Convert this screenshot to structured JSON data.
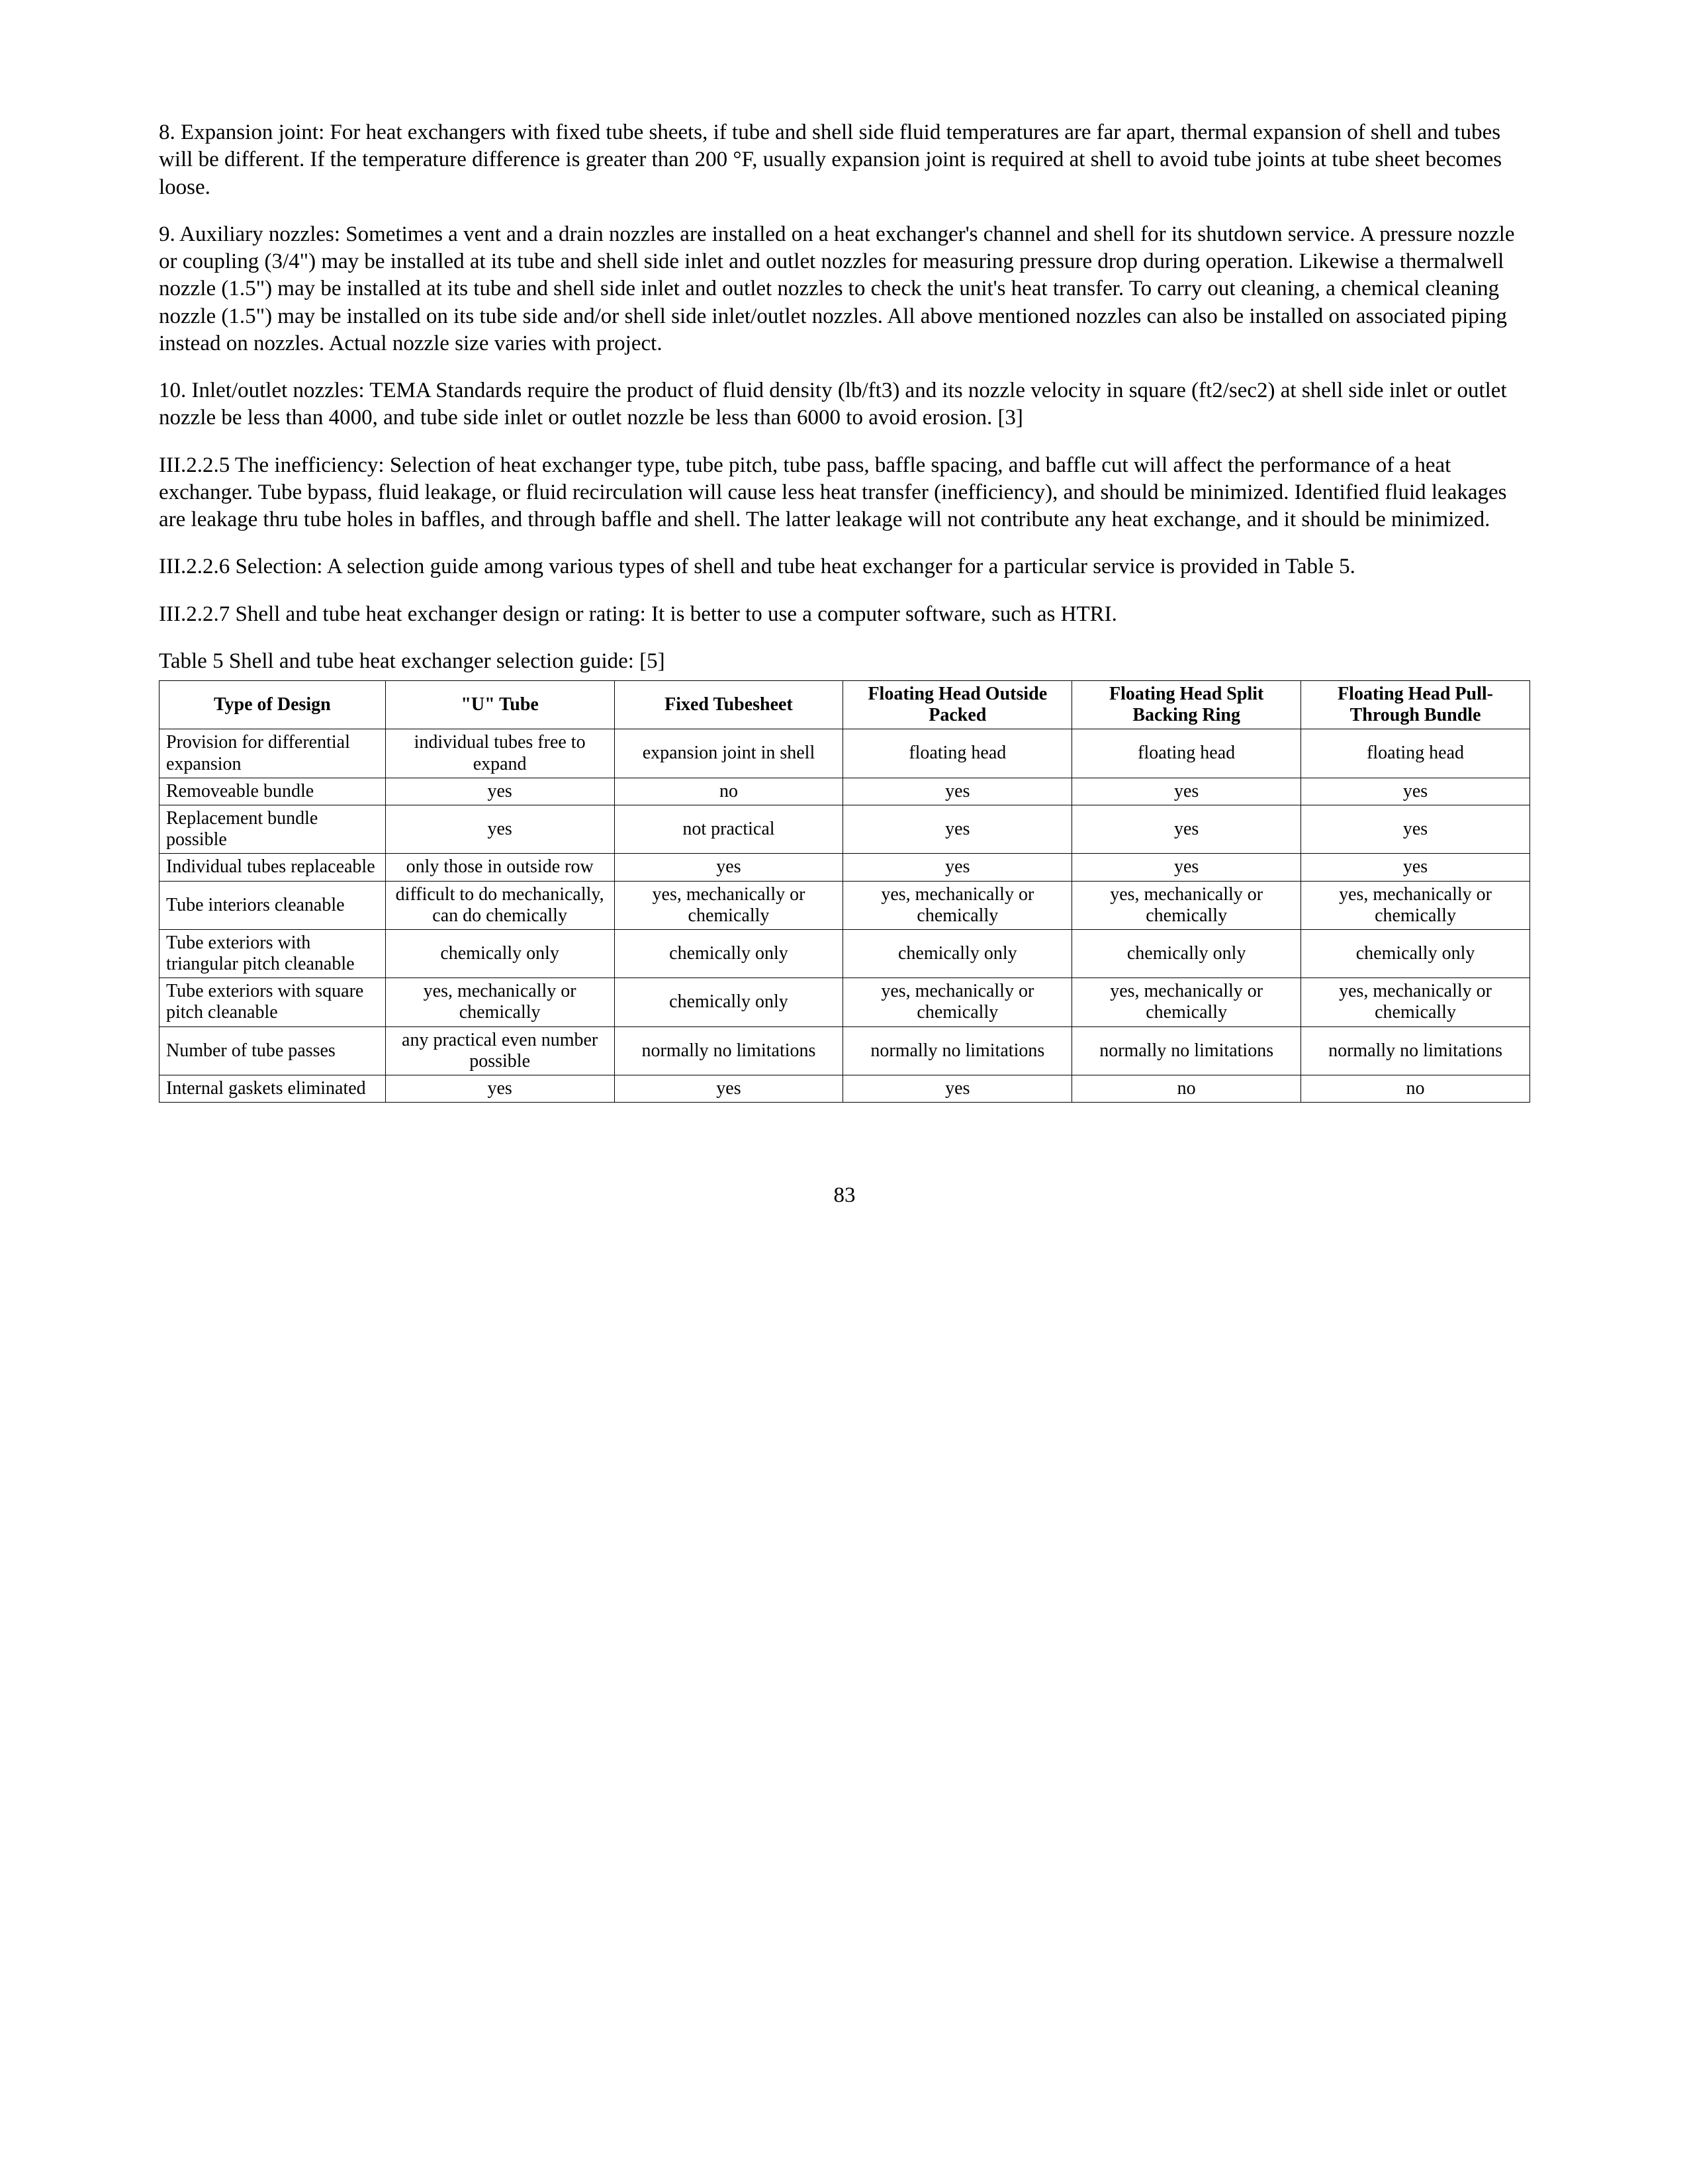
{
  "paragraphs": {
    "p8": "8. Expansion joint: For heat exchangers with fixed tube sheets, if tube and shell side fluid temperatures are far apart, thermal expansion of shell and tubes will be different. If the temperature difference is greater than 200 °F, usually expansion joint is required at shell to avoid tube joints at tube sheet becomes loose.",
    "p9": "9. Auxiliary nozzles: Sometimes a vent and a drain nozzles are installed on a heat exchanger's channel and shell for its shutdown service. A pressure nozzle or coupling (3/4\") may be installed at its tube and shell side inlet and outlet nozzles for measuring pressure drop during operation. Likewise a thermalwell nozzle (1.5\") may be installed at its tube and shell side inlet and outlet nozzles to check the unit's heat transfer. To carry out cleaning, a chemical cleaning nozzle (1.5\") may be installed on its tube side and/or shell side inlet/outlet nozzles. All above mentioned nozzles can also be installed on associated piping instead on nozzles. Actual nozzle size varies with project.",
    "p10": "10. Inlet/outlet nozzles: TEMA Standards require the product of fluid density (lb/ft3) and its nozzle velocity in square (ft2/sec2) at shell side inlet or outlet nozzle be less than 4000, and tube side inlet or outlet nozzle be less than 6000 to avoid erosion. [3]",
    "p_iii225": "III.2.2.5 The inefficiency: Selection of heat exchanger type, tube pitch, tube pass, baffle spacing, and baffle cut will affect the performance of a heat exchanger. Tube bypass, fluid leakage, or fluid recirculation will cause less heat transfer (inefficiency), and should be minimized. Identified fluid leakages are leakage thru tube holes in baffles, and through baffle and shell. The latter leakage will not contribute any heat exchange, and it should be minimized.",
    "p_iii226": "III.2.2.6 Selection: A selection guide among various types of shell and tube heat exchanger for a particular service is provided in Table 5.",
    "p_iii227": "III.2.2.7 Shell and tube heat exchanger design or rating: It is better to use a computer software, such as HTRI.",
    "table_caption": "Table 5 Shell and tube heat exchanger selection guide: [5]"
  },
  "table": {
    "headers": {
      "c0": "Type of Design",
      "c1": "\"U\" Tube",
      "c2": "Fixed Tubesheet",
      "c3": "Floating Head Outside Packed",
      "c4": "Floating Head Split Backing Ring",
      "c5": "Floating Head Pull-Through Bundle"
    },
    "rows": [
      {
        "label": "Provision for differential expansion",
        "c1": "individual tubes free to expand",
        "c2": "expansion joint in shell",
        "c3": "floating head",
        "c4": "floating head",
        "c5": "floating head"
      },
      {
        "label": "Removeable bundle",
        "c1": "yes",
        "c2": "no",
        "c3": "yes",
        "c4": "yes",
        "c5": "yes"
      },
      {
        "label": "Replacement bundle possible",
        "c1": "yes",
        "c2": "not practical",
        "c3": "yes",
        "c4": "yes",
        "c5": "yes"
      },
      {
        "label": "Individual tubes replaceable",
        "c1": "only those in outside row",
        "c2": "yes",
        "c3": "yes",
        "c4": "yes",
        "c5": "yes"
      },
      {
        "label": "Tube interiors cleanable",
        "c1": "difficult to do mechanically, can do chemically",
        "c2": "yes, mechanically or chemically",
        "c3": "yes, mechanically or chemically",
        "c4": "yes, mechanically or chemically",
        "c5": "yes, mechanically or chemically"
      },
      {
        "label": "Tube exteriors with triangular pitch cleanable",
        "c1": "chemically only",
        "c2": "chemically only",
        "c3": "chemically only",
        "c4": "chemically only",
        "c5": "chemically only"
      },
      {
        "label": "Tube exteriors with square pitch cleanable",
        "c1": "yes, mechanically or chemically",
        "c2": "chemically only",
        "c3": "yes, mechanically or chemically",
        "c4": "yes, mechanically or chemically",
        "c5": "yes, mechanically or chemically"
      },
      {
        "label": "Number of tube passes",
        "c1": "any practical even number possible",
        "c2": "normally no limitations",
        "c3": "normally no limitations",
        "c4": "normally no limitations",
        "c5": "normally no limitations"
      },
      {
        "label": "Internal gaskets eliminated",
        "c1": "yes",
        "c2": "yes",
        "c3": "yes",
        "c4": "no",
        "c5": "no"
      }
    ]
  },
  "page_number": "83"
}
